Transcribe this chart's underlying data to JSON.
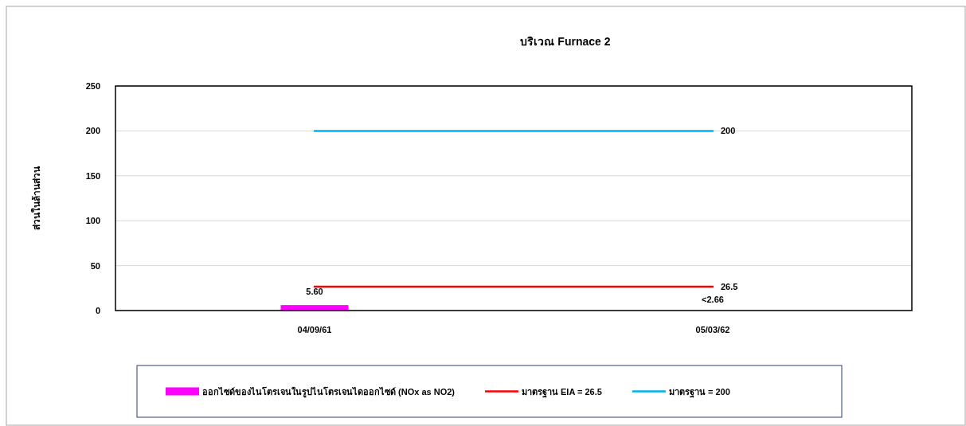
{
  "chart_data": {
    "type": "bar",
    "title": "บริเวณ Furnace 2",
    "ylabel": "ส่วนในล้านส่วน",
    "categories": [
      "04/09/61",
      "05/03/62"
    ],
    "series": [
      {
        "name": "ออกไซด์ของไนโตรเจนในรูปไนโตรเจนไดออกไซด์ (NOx as NO2)",
        "color": "#ff00ff",
        "values": [
          5.6,
          null
        ],
        "value_labels": [
          "5.60",
          "<2.66"
        ]
      },
      {
        "name": "มาตรฐาน EIA = 26.5",
        "type": "line",
        "color": "#ff0000",
        "values": [
          26.5,
          26.5
        ],
        "value_labels": [
          null,
          "26.5"
        ]
      },
      {
        "name": "มาตรฐาน = 200",
        "type": "line",
        "color": "#00b0f0",
        "values": [
          200,
          200
        ],
        "value_labels": [
          null,
          "200"
        ]
      }
    ],
    "ylim": [
      0,
      250
    ],
    "yticks": [
      0,
      50,
      100,
      150,
      200,
      250
    ],
    "grid": "y",
    "legend": "bottom"
  }
}
